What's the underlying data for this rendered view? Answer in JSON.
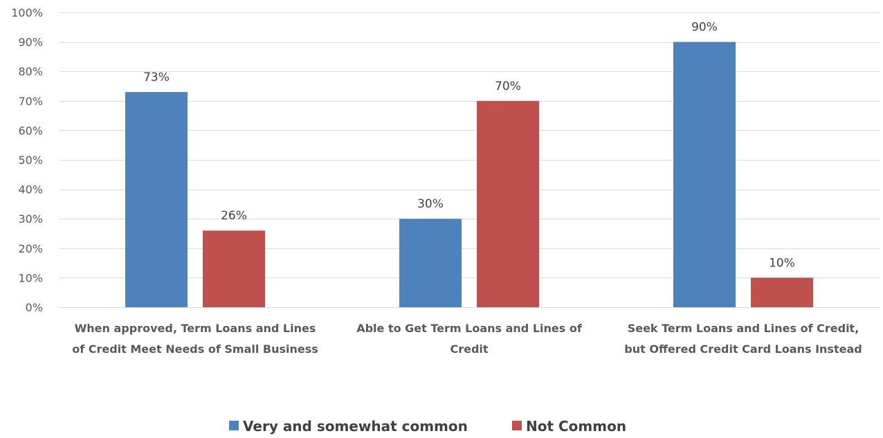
{
  "chart_data": {
    "type": "bar",
    "categories": [
      [
        "When approved, Term Loans and Lines",
        "of Credit Meet Needs of Small Business"
      ],
      [
        "Able to Get Term Loans and Lines of",
        "Credit"
      ],
      [
        "Seek Term Loans and Lines of Credit,",
        "but Offered Credit Card Loans Instead"
      ]
    ],
    "series": [
      {
        "name": "Very and somewhat common",
        "values": [
          73,
          30,
          90
        ],
        "labels": [
          "73%",
          "30%",
          "90%"
        ],
        "color": "#4f81bd"
      },
      {
        "name": "Not Common",
        "values": [
          26,
          70,
          10
        ],
        "labels": [
          "26%",
          "70%",
          "10%"
        ],
        "color": "#c0504d"
      }
    ],
    "ylim": [
      0,
      100
    ],
    "yticks": [
      0,
      10,
      20,
      30,
      40,
      50,
      60,
      70,
      80,
      90,
      100
    ],
    "ytick_labels": [
      "0%",
      "10%",
      "20%",
      "30%",
      "40%",
      "50%",
      "60%",
      "70%",
      "80%",
      "90%",
      "100%"
    ],
    "grid": true,
    "legend_position": "bottom",
    "title": "",
    "xlabel": "",
    "ylabel": ""
  }
}
